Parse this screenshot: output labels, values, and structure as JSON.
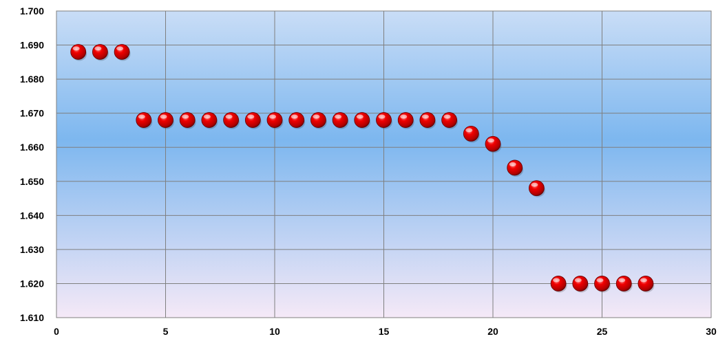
{
  "chart_data": {
    "type": "scatter",
    "title": "",
    "xlabel": "",
    "ylabel": "",
    "xlim": [
      0,
      30
    ],
    "ylim": [
      1.61,
      1.7
    ],
    "x_ticks": [
      "0",
      "5",
      "10",
      "15",
      "20",
      "25",
      "30"
    ],
    "y_ticks": [
      "1.610",
      "1.620",
      "1.630",
      "1.640",
      "1.650",
      "1.660",
      "1.670",
      "1.680",
      "1.690",
      "1.700"
    ],
    "grid": true,
    "legend": "none",
    "marker_color": "#e00000",
    "background_gradient": [
      "#c7dcf5",
      "#7fb6ee",
      "#f3e8f6"
    ],
    "series": [
      {
        "x": [
          1,
          2,
          3,
          4,
          5,
          6,
          7,
          8,
          9,
          10,
          11,
          12,
          13,
          14,
          15,
          16,
          17,
          18,
          19,
          20,
          21,
          22,
          23,
          24,
          25,
          26,
          27
        ],
        "y": [
          1.688,
          1.688,
          1.688,
          1.668,
          1.668,
          1.668,
          1.668,
          1.668,
          1.668,
          1.668,
          1.668,
          1.668,
          1.668,
          1.668,
          1.668,
          1.668,
          1.668,
          1.668,
          1.664,
          1.661,
          1.654,
          1.648,
          1.62,
          1.62,
          1.62,
          1.62,
          1.62
        ]
      }
    ]
  }
}
